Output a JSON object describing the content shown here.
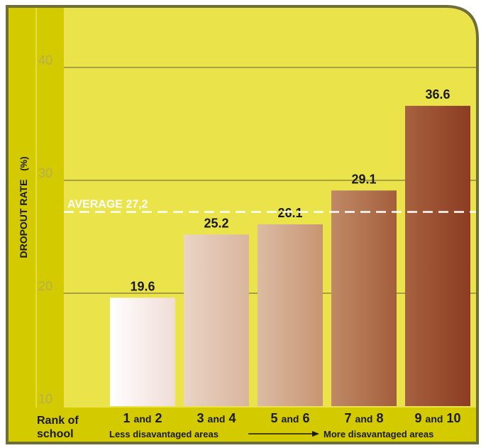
{
  "colors": {
    "plot_bg": "#ebe34a",
    "left_band": "#d3cb00",
    "frame": "#6e6e3a",
    "gridline": "#a8a040",
    "tick_label": "#b5ad5a",
    "average_line": "#ffffff"
  },
  "chart_data": {
    "type": "bar",
    "ylabel": "DROPOUT RATE",
    "ylabel_unit": "(%)",
    "ylim": [
      10,
      45
    ],
    "yticks": [
      10,
      20,
      30,
      40
    ],
    "grid": true,
    "categories": [
      {
        "first": "1",
        "conj": "and",
        "second": "2"
      },
      {
        "first": "3",
        "conj": "and",
        "second": "4"
      },
      {
        "first": "5",
        "conj": "and",
        "second": "6"
      },
      {
        "first": "7",
        "conj": "and",
        "second": "8"
      },
      {
        "first": "9",
        "conj": "and",
        "second": "10"
      }
    ],
    "values": [
      19.6,
      25.2,
      26.1,
      29.1,
      36.6
    ],
    "value_labels": [
      "19.6",
      "25.2",
      "26.1",
      "29.1",
      "36.6"
    ],
    "bar_colors": [
      [
        "#ffffff",
        "#f0dcd6"
      ],
      [
        "#ead4c4",
        "#d9b59e"
      ],
      [
        "#dcbba4",
        "#c89472"
      ],
      [
        "#bf8a66",
        "#a45e3c"
      ],
      [
        "#a6623f",
        "#8c3c22"
      ]
    ],
    "average": {
      "value": 27.2,
      "label": "AVERAGE 27,2"
    },
    "xaxis": {
      "title_line1": "Rank of",
      "title_line2": "school",
      "left_note": "Less disavantaged areas",
      "right_note": "More disavantaged areas"
    }
  }
}
